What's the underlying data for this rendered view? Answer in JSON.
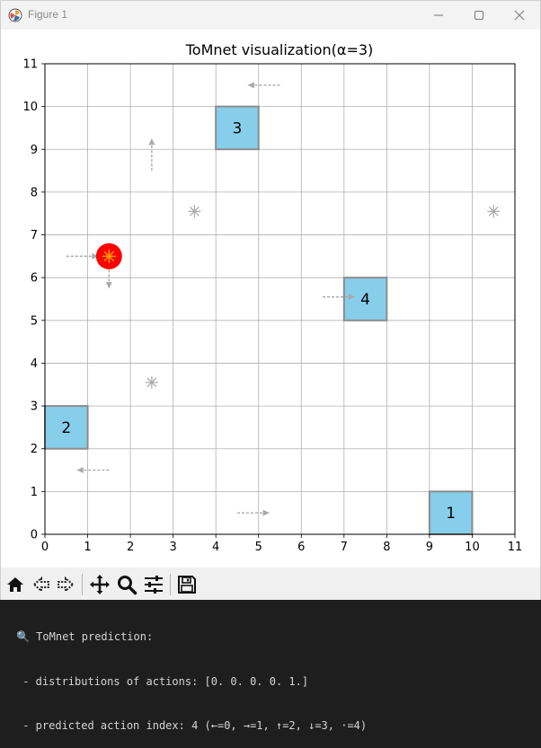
{
  "window": {
    "title": "Figure 1"
  },
  "chart_data": {
    "type": "scatter",
    "title": "ToMnet visualization(α=3)",
    "xlabel": "",
    "ylabel": "",
    "xlim": [
      0,
      11
    ],
    "ylim": [
      0,
      11
    ],
    "x_ticks": [
      0,
      1,
      2,
      3,
      4,
      5,
      6,
      7,
      8,
      9,
      10,
      11
    ],
    "y_ticks": [
      0,
      1,
      2,
      3,
      4,
      5,
      6,
      7,
      8,
      9,
      10,
      11
    ],
    "grid": true,
    "goal_color": "#87ceeb",
    "agent_color": "#ff0000",
    "agent_marker_color": "#ffa500",
    "trail_color": "#a9a9a9",
    "goals": [
      {
        "label": "1",
        "x": 9,
        "y": 0
      },
      {
        "label": "2",
        "x": 0,
        "y": 2
      },
      {
        "label": "3",
        "x": 4,
        "y": 9
      },
      {
        "label": "4",
        "x": 7,
        "y": 5
      }
    ],
    "agent": {
      "x": 1.5,
      "y": 6.5
    },
    "visited_points": [
      {
        "x": 3.5,
        "y": 7.55
      },
      {
        "x": 10.5,
        "y": 7.55
      },
      {
        "x": 2.5,
        "y": 3.55
      }
    ],
    "trail_arrows": [
      {
        "x": 5.5,
        "y": 10.5,
        "dx": -0.75,
        "dy": 0
      },
      {
        "x": 2.5,
        "y": 8.5,
        "dx": 0,
        "dy": 0.75
      },
      {
        "x": 0.5,
        "y": 6.5,
        "dx": 0.75,
        "dy": 0
      },
      {
        "x": 1.5,
        "y": 6.5,
        "dx": 0,
        "dy": -0.75
      },
      {
        "x": 6.5,
        "y": 5.55,
        "dx": 0.75,
        "dy": 0
      },
      {
        "x": 1.5,
        "y": 1.5,
        "dx": -0.75,
        "dy": 0
      },
      {
        "x": 4.5,
        "y": 0.5,
        "dx": 0.75,
        "dy": 0
      }
    ]
  },
  "toolbar": {
    "home": "home-icon",
    "back": "back-icon",
    "forward": "forward-icon",
    "pan": "pan-icon",
    "zoom": "zoom-icon",
    "configure": "configure-subplots-icon",
    "save": "save-icon"
  },
  "console": {
    "lines": [
      "🔍 ToMnet prediction:",
      " - distributions of actions: [0. 0. 0. 0. 1.]",
      " - predicted action index: 4 (←=0, →=1, ↑=2, ↓=3, ·=4)"
    ]
  }
}
